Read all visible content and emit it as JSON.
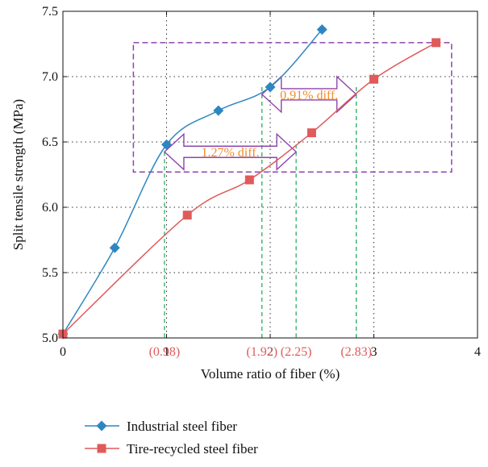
{
  "chart_data": {
    "type": "line",
    "title": "",
    "xlabel": "Volume ratio of fiber (%)",
    "ylabel": "Split tensile strength (MPa)",
    "xlim": [
      0,
      4
    ],
    "ylim": [
      5.0,
      7.5
    ],
    "x_ticks": [
      "0",
      "1",
      "2",
      "3",
      "4"
    ],
    "y_ticks": [
      "5.0",
      "5.5",
      "6.0",
      "6.5",
      "7.0",
      "7.5"
    ],
    "grid": true,
    "legend_position": "bottom",
    "series": [
      {
        "name": "Industrial steel fiber",
        "color": "#2e86c1",
        "marker": "diamond",
        "x": [
          0,
          0.5,
          1.0,
          1.5,
          2.0,
          2.5
        ],
        "y": [
          5.03,
          5.69,
          6.48,
          6.74,
          6.92,
          7.36
        ]
      },
      {
        "name": "Tire-recycled steel fiber",
        "color": "#e05a5a",
        "marker": "square",
        "x": [
          0,
          1.2,
          1.8,
          2.4,
          3.0,
          3.6
        ],
        "y": [
          5.03,
          5.94,
          6.21,
          6.57,
          6.98,
          7.26
        ]
      }
    ],
    "annotations": {
      "vlines": [
        {
          "x": 0.98,
          "label": "(0.98)"
        },
        {
          "x": 1.92,
          "label": "(1.92)"
        },
        {
          "x": 2.25,
          "label": "(2.25)"
        },
        {
          "x": 2.83,
          "label": "(2.83)"
        }
      ],
      "arrows": [
        {
          "from_x": 0.98,
          "to_x": 2.25,
          "y": 6.48,
          "label": "1.27% diff."
        },
        {
          "from_x": 1.92,
          "to_x": 2.83,
          "y": 6.92,
          "label": "0.91% diff."
        }
      ],
      "box": {
        "x0": 0.68,
        "x1": 3.75,
        "y0": 6.27,
        "y1": 7.26
      },
      "annotation_color": "#f08c2c",
      "arrow_color": "#8e44ad",
      "vline_color": "#27ae60",
      "vline_label_color": "#e05a5a"
    }
  }
}
